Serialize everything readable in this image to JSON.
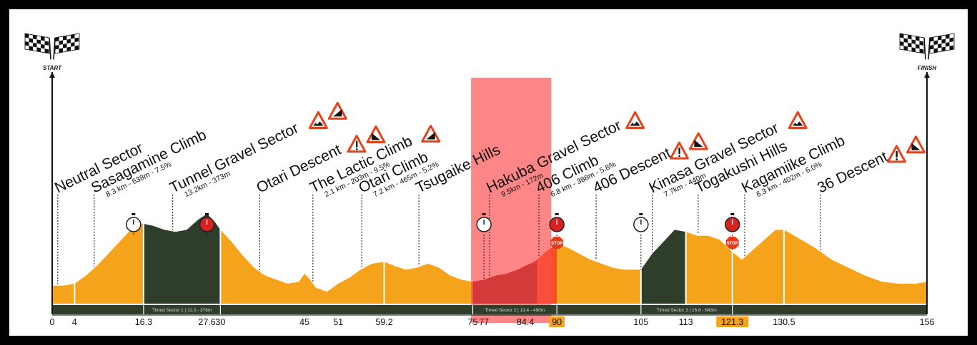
{
  "chart_data": {
    "type": "area",
    "title": "",
    "xlabel": "",
    "ylabel": "",
    "unit": "km",
    "xlim": [
      0,
      156
    ],
    "start_label": "START",
    "finish_label": "FINISH",
    "colors": {
      "normal": "#f5a31a",
      "timed_sector": "#2f3d2b",
      "highlight_sector": "#7a1313",
      "stop_climb": "#f4511e",
      "axis_band": "#2f3d2b",
      "highlight_box": "#ff4d4d",
      "callout_fill": "#f7a21d"
    },
    "profile": [
      {
        "km": 0,
        "elev": 0.09
      },
      {
        "km": 2,
        "elev": 0.09
      },
      {
        "km": 4,
        "elev": 0.1
      },
      {
        "km": 6,
        "elev": 0.14
      },
      {
        "km": 8,
        "elev": 0.19
      },
      {
        "km": 10,
        "elev": 0.25
      },
      {
        "km": 12,
        "elev": 0.31
      },
      {
        "km": 14,
        "elev": 0.37
      },
      {
        "km": 15.5,
        "elev": 0.4
      },
      {
        "km": 16.3,
        "elev": 0.4
      },
      {
        "km": 18,
        "elev": 0.39
      },
      {
        "km": 20,
        "elev": 0.37
      },
      {
        "km": 22,
        "elev": 0.36
      },
      {
        "km": 24,
        "elev": 0.37
      },
      {
        "km": 26,
        "elev": 0.42
      },
      {
        "km": 27.6,
        "elev": 0.45
      },
      {
        "km": 29,
        "elev": 0.41
      },
      {
        "km": 30,
        "elev": 0.37
      },
      {
        "km": 32,
        "elev": 0.31
      },
      {
        "km": 34,
        "elev": 0.24
      },
      {
        "km": 36,
        "elev": 0.18
      },
      {
        "km": 38,
        "elev": 0.14
      },
      {
        "km": 40,
        "elev": 0.12
      },
      {
        "km": 42,
        "elev": 0.1
      },
      {
        "km": 44,
        "elev": 0.11
      },
      {
        "km": 45,
        "elev": 0.15
      },
      {
        "km": 46,
        "elev": 0.12
      },
      {
        "km": 47,
        "elev": 0.08
      },
      {
        "km": 49,
        "elev": 0.06
      },
      {
        "km": 51,
        "elev": 0.1
      },
      {
        "km": 53,
        "elev": 0.13
      },
      {
        "km": 55,
        "elev": 0.17
      },
      {
        "km": 57,
        "elev": 0.2
      },
      {
        "km": 59.2,
        "elev": 0.21
      },
      {
        "km": 61,
        "elev": 0.19
      },
      {
        "km": 63,
        "elev": 0.17
      },
      {
        "km": 65,
        "elev": 0.18
      },
      {
        "km": 67,
        "elev": 0.2
      },
      {
        "km": 69,
        "elev": 0.18
      },
      {
        "km": 71,
        "elev": 0.14
      },
      {
        "km": 73,
        "elev": 0.12
      },
      {
        "km": 75,
        "elev": 0.11
      },
      {
        "km": 77,
        "elev": 0.12
      },
      {
        "km": 79,
        "elev": 0.14
      },
      {
        "km": 81,
        "elev": 0.15
      },
      {
        "km": 83,
        "elev": 0.17
      },
      {
        "km": 84.4,
        "elev": 0.19
      },
      {
        "km": 86,
        "elev": 0.21
      },
      {
        "km": 88,
        "elev": 0.26
      },
      {
        "km": 90,
        "elev": 0.3
      },
      {
        "km": 92,
        "elev": 0.28
      },
      {
        "km": 94,
        "elev": 0.25
      },
      {
        "km": 96,
        "elev": 0.22
      },
      {
        "km": 98,
        "elev": 0.2
      },
      {
        "km": 100,
        "elev": 0.18
      },
      {
        "km": 102,
        "elev": 0.17
      },
      {
        "km": 105,
        "elev": 0.17
      },
      {
        "km": 107,
        "elev": 0.25
      },
      {
        "km": 109,
        "elev": 0.31
      },
      {
        "km": 111,
        "elev": 0.37
      },
      {
        "km": 113,
        "elev": 0.36
      },
      {
        "km": 115,
        "elev": 0.34
      },
      {
        "km": 117,
        "elev": 0.34
      },
      {
        "km": 119,
        "elev": 0.32
      },
      {
        "km": 121.3,
        "elev": 0.26
      },
      {
        "km": 123,
        "elev": 0.22
      },
      {
        "km": 125,
        "elev": 0.27
      },
      {
        "km": 127,
        "elev": 0.32
      },
      {
        "km": 129,
        "elev": 0.37
      },
      {
        "km": 130.5,
        "elev": 0.37
      },
      {
        "km": 133,
        "elev": 0.33
      },
      {
        "km": 136,
        "elev": 0.28
      },
      {
        "km": 139,
        "elev": 0.22
      },
      {
        "km": 142,
        "elev": 0.18
      },
      {
        "km": 145,
        "elev": 0.14
      },
      {
        "km": 148,
        "elev": 0.11
      },
      {
        "km": 151,
        "elev": 0.1
      },
      {
        "km": 154,
        "elev": 0.1
      },
      {
        "km": 156,
        "elev": 0.11
      }
    ],
    "sections": [
      {
        "kind": "normal",
        "from": 0,
        "to": 16.3
      },
      {
        "kind": "timed_sector",
        "from": 16.3,
        "to": 30
      },
      {
        "kind": "normal",
        "from": 30,
        "to": 75
      },
      {
        "kind": "highlight_sector",
        "from": 75,
        "to": 86.5
      },
      {
        "kind": "stop_climb",
        "from": 86.5,
        "to": 90
      },
      {
        "kind": "normal",
        "from": 90,
        "to": 105
      },
      {
        "kind": "timed_sector",
        "from": 105,
        "to": 113
      },
      {
        "kind": "normal",
        "from": 113,
        "to": 156
      }
    ],
    "sector_dividers": [
      4,
      16.3,
      30,
      59.2,
      105,
      113,
      121.3,
      130.5
    ],
    "ticks": [
      {
        "km": 0,
        "label": "0"
      },
      {
        "km": 4,
        "label": "4"
      },
      {
        "km": 16.3,
        "label": "16.3"
      },
      {
        "km": 27.6,
        "label": "27.6"
      },
      {
        "km": 30,
        "label": "30"
      },
      {
        "km": 45,
        "label": "45"
      },
      {
        "km": 51,
        "label": "51"
      },
      {
        "km": 59.2,
        "label": "59.2"
      },
      {
        "km": 75,
        "label": "75"
      },
      {
        "km": 77,
        "label": "77"
      },
      {
        "km": 84.4,
        "label": "84.4"
      },
      {
        "km": 90,
        "label": "90",
        "highlight": true
      },
      {
        "km": 105,
        "label": "105"
      },
      {
        "km": 113,
        "label": "113"
      },
      {
        "km": 121.3,
        "label": "121.3",
        "highlight": true
      },
      {
        "km": 130.5,
        "label": "130.5"
      },
      {
        "km": 156,
        "label": "156"
      }
    ],
    "timed_sectors": [
      {
        "from": 16.3,
        "to": 30,
        "label": "Timed Sector 1 | 11.3 - 376m"
      },
      {
        "from": 75,
        "to": 90,
        "label": "Timed Sector 2 | 13.4 - 490m"
      },
      {
        "from": 105,
        "to": 121.3,
        "label": "Timed Sector 3 | 16.6 - 643m"
      }
    ],
    "segments": [
      {
        "km": 1,
        "title": "Neutral Sector",
        "sub": "",
        "icons": []
      },
      {
        "km": 7.5,
        "title": "Sasagamine Climb",
        "sub": "8.3 km - 638m - 7.5%",
        "icons": []
      },
      {
        "km": 21.5,
        "title": "Tunnel Gravel Sector",
        "sub": "13.2km - 373m",
        "icons": [
          "gravel",
          "climb"
        ]
      },
      {
        "km": 37,
        "title": "Otari Descent",
        "sub": "",
        "icons": [
          "caution",
          "descent"
        ]
      },
      {
        "km": 46.5,
        "title": "The Lactic Climb",
        "sub": "2.1 km - 203m - 9.5%",
        "icons": [
          "climb"
        ]
      },
      {
        "km": 55.2,
        "title": "Otari Climb",
        "sub": "7.2 km - 465m - 5.2%",
        "icons": []
      },
      {
        "km": 65.4,
        "title": "Tsugaike Hills",
        "sub": "",
        "icons": []
      },
      {
        "km": 78,
        "title": "Hakuba Gravel Sector",
        "sub": "9.5km - 172m",
        "icons": [
          "gravel"
        ]
      },
      {
        "km": 86.8,
        "title": "406 Climb",
        "sub": "6.8 km - 388m - 5.8%",
        "icons": []
      },
      {
        "km": 97,
        "title": "406 Descent",
        "sub": "",
        "icons": [
          "caution",
          "descent"
        ]
      },
      {
        "km": 107,
        "title": "Kinasa Gravel Sector",
        "sub": "7.7km - 440m",
        "icons": [
          "gravel"
        ]
      },
      {
        "km": 115.2,
        "title": "Togakushi Hills",
        "sub": "",
        "icons": []
      },
      {
        "km": 123.5,
        "title": "Kagamiike Climb",
        "sub": "6.3 km - 402m - 6.0%",
        "icons": []
      },
      {
        "km": 137,
        "title": "36 Descent",
        "sub": "",
        "icons": [
          "caution",
          "descent"
        ]
      }
    ],
    "markers": [
      {
        "km": 14.5,
        "type": "timer-start"
      },
      {
        "km": 27.6,
        "type": "timer-stop"
      },
      {
        "km": 77,
        "type": "timer-start"
      },
      {
        "km": 90,
        "type": "timer-stop",
        "stop_sign": "STOP"
      },
      {
        "km": 105,
        "type": "timer-start"
      },
      {
        "km": 121.3,
        "type": "timer-stop",
        "stop_sign": "STOP"
      }
    ],
    "highlight_range": [
      74.7,
      89
    ]
  }
}
